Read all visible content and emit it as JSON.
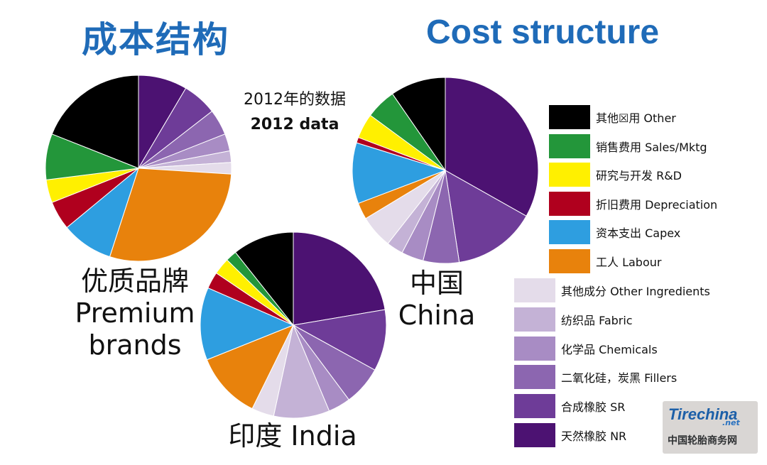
{
  "titles": {
    "cn": "成本结构",
    "en": "Cost structure",
    "year_cn": "2012年的数据",
    "year_en": "2012 data"
  },
  "legend": [
    {
      "label": "其他☒用 Other",
      "color": "#000000"
    },
    {
      "label": "销售费用 Sales/Mktg",
      "color": "#23963a"
    },
    {
      "label": "研究与开发 R&D",
      "color": "#fff000"
    },
    {
      "label": "折旧费用 Depreciation",
      "color": "#b0001e"
    },
    {
      "label": "资本支出 Capex",
      "color": "#2e9ee0"
    },
    {
      "label": "工人 Labour",
      "color": "#e8820c"
    },
    {
      "label": "其他成分 Other Ingredients",
      "color": "#e4dcea"
    },
    {
      "label": "纺织品 Fabric",
      "color": "#c4b2d6"
    },
    {
      "label": "化学品 Chemicals",
      "color": "#a88cc4"
    },
    {
      "label": "二氧化硅，炭黑 Fillers",
      "color": "#8c66b0"
    },
    {
      "label": "合成橡胶 SR",
      "color": "#6e3c98"
    },
    {
      "label": "天然橡胶 NR",
      "color": "#4c1272"
    }
  ],
  "watermark": {
    "logo": "Tirechina",
    "net": ".net",
    "cn": "中国轮胎商务网"
  },
  "chart_data": [
    {
      "type": "pie",
      "label_cn": "优质品牌",
      "label_en": "Premium brands",
      "slices": [
        {
          "name": "天然橡胶 NR",
          "value": 8.5
        },
        {
          "name": "合成橡胶 SR",
          "value": 6
        },
        {
          "name": "二氧化硅，炭黑 Fillers",
          "value": 4.5
        },
        {
          "name": "化学品 Chemicals",
          "value": 3
        },
        {
          "name": "纺织品 Fabric",
          "value": 2
        },
        {
          "name": "其他成分 Other Ingredients",
          "value": 2
        },
        {
          "name": "工人 Labour",
          "value": 29
        },
        {
          "name": "资本支出 Capex",
          "value": 9
        },
        {
          "name": "折旧费用 Depreciation",
          "value": 5
        },
        {
          "name": "研究与开发 R&D",
          "value": 4
        },
        {
          "name": "销售费用 Sales/Mktg",
          "value": 8
        },
        {
          "name": "其他☒用 Other",
          "value": 19
        }
      ]
    },
    {
      "type": "pie",
      "label_cn": "中国",
      "label_en": "China",
      "slices": [
        {
          "name": "天然橡胶 NR",
          "value": 34.5
        },
        {
          "name": "合成橡胶 SR",
          "value": 15
        },
        {
          "name": "二氧化硅，炭黑 Fillers",
          "value": 6.5
        },
        {
          "name": "化学品 Chemicals",
          "value": 4
        },
        {
          "name": "纺织品 Fabric",
          "value": 3
        },
        {
          "name": "其他成分 Other Ingredients",
          "value": 6
        },
        {
          "name": "工人 Labour",
          "value": 3
        },
        {
          "name": "资本支出 Capex",
          "value": 11
        },
        {
          "name": "折旧费用 Depreciation",
          "value": 1
        },
        {
          "name": "研究与开发 R&D",
          "value": 4.5
        },
        {
          "name": "销售费用 Sales/Mktg",
          "value": 5.5
        },
        {
          "name": "其他☒用 Other",
          "value": 10
        }
      ]
    },
    {
      "type": "pie",
      "label_cn": "印度",
      "label_en": "India",
      "slices": [
        {
          "name": "天然橡胶 NR",
          "value": 23
        },
        {
          "name": "合成橡胶 SR",
          "value": 11
        },
        {
          "name": "二氧化硅，炭黑 Fillers",
          "value": 7
        },
        {
          "name": "化学品 Chemicals",
          "value": 4
        },
        {
          "name": "纺织品 Fabric",
          "value": 10
        },
        {
          "name": "其他成分 Other Ingredients",
          "value": 4
        },
        {
          "name": "工人 Labour",
          "value": 12
        },
        {
          "name": "资本支出 Capex",
          "value": 13
        },
        {
          "name": "折旧费用 Depreciation",
          "value": 3
        },
        {
          "name": "研究与开发 R&D",
          "value": 3
        },
        {
          "name": "销售费用 Sales/Mktg",
          "value": 2
        },
        {
          "name": "其他☒用 Other",
          "value": 11
        }
      ]
    }
  ]
}
